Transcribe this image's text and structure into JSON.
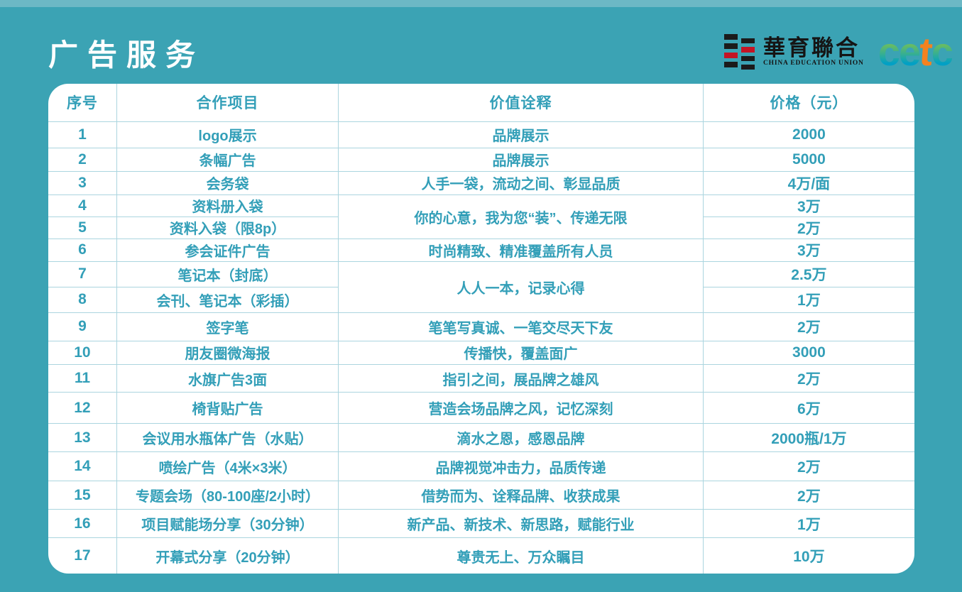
{
  "page": {
    "title": "广告服务",
    "background_color": "#3ba3b4",
    "top_strip_color": "#6cb8c5",
    "accent_text_color": "#339fb8",
    "grid_line_color": "#abd5df"
  },
  "logos": {
    "union": {
      "name": "華育聯合",
      "subtitle": "CHINA EDUCATION UNION",
      "mark_black": "#1b1b1b",
      "mark_red": "#c41425"
    },
    "cetc": {
      "letters": [
        "c",
        "e",
        "t",
        "c"
      ],
      "green": "#8dc63f",
      "blue": "#00a0c6",
      "orange": "#f5821f"
    }
  },
  "table": {
    "headers": [
      "序号",
      "合作项目",
      "价值诠释",
      "价格（元）"
    ],
    "rows": [
      {
        "no": "1",
        "project": "logo展示",
        "value": "品牌展示",
        "price": "2000"
      },
      {
        "no": "2",
        "project": "条幅广告",
        "value": "品牌展示",
        "price": "5000"
      },
      {
        "no": "3",
        "project": "会务袋",
        "value": "人手一袋，流动之间、彰显品质",
        "price": "4万/面"
      },
      {
        "no": "4",
        "project": "资料册入袋",
        "value": "你的心意，我为您“装”、传递无限",
        "value_rowspan": 2,
        "price": "3万"
      },
      {
        "no": "5",
        "project": "资料入袋（限8p）",
        "price": "2万"
      },
      {
        "no": "6",
        "project": "参会证件广告",
        "value": "时尚精致、精准覆盖所有人员",
        "price": "3万"
      },
      {
        "no": "7",
        "project": "笔记本（封底）",
        "value": "人人一本，记录心得",
        "value_rowspan": 2,
        "price": "2.5万"
      },
      {
        "no": "8",
        "project": "会刊、笔记本（彩插）",
        "price": "1万"
      },
      {
        "no": "9",
        "project": "签字笔",
        "value": "笔笔写真诚、一笔交尽天下友",
        "price": "2万"
      },
      {
        "no": "10",
        "project": "朋友圈微海报",
        "value": "传播快，覆盖面广",
        "price": "3000"
      },
      {
        "no": "11",
        "project": "水旗广告3面",
        "value": "指引之间，展品牌之雄风",
        "price": "2万"
      },
      {
        "no": "12",
        "project": "椅背贴广告",
        "value": "营造会场品牌之风，记忆深刻",
        "price": "6万"
      },
      {
        "no": "13",
        "project": "会议用水瓶体广告（水贴）",
        "value": "滴水之恩，感恩品牌",
        "price": "2000瓶/1万"
      },
      {
        "no": "14",
        "project": "喷绘广告（4米×3米）",
        "value": "品牌视觉冲击力，品质传递",
        "price": "2万"
      },
      {
        "no": "15",
        "project": "专题会场（80-100座/2小时）",
        "value": "借势而为、诠释品牌、收获成果",
        "price": "2万"
      },
      {
        "no": "16",
        "project": "项目赋能场分享（30分钟）",
        "value": "新产品、新技术、新思路，赋能行业",
        "price": "1万"
      },
      {
        "no": "17",
        "project": "开幕式分享（20分钟）",
        "value": "尊贵无上、万众瞩目",
        "price": "10万"
      }
    ]
  }
}
